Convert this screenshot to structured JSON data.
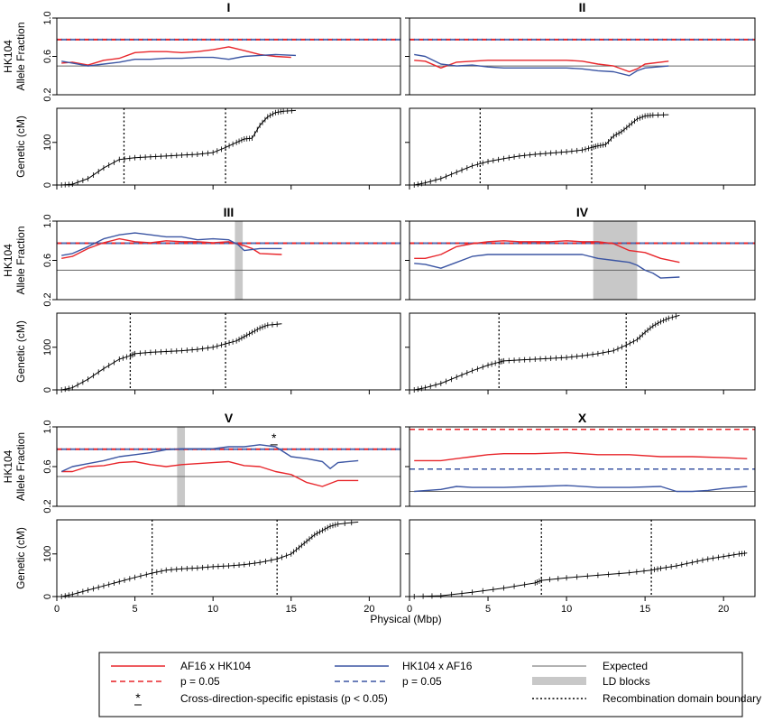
{
  "chart_data": {
    "type": "line",
    "layout": "3x2 panel grid, each cell has an allele-fraction track above a genetic map track",
    "xlabel": "Physical (Mbp)",
    "x_ticks": [
      0,
      5,
      10,
      15,
      20
    ],
    "xlim": [
      0,
      22
    ],
    "af_ylabel": [
      "HK104",
      "Allele Fraction"
    ],
    "af_ylim": [
      0.2,
      1.0
    ],
    "af_y_ticks": [
      0.2,
      0.6,
      1.0
    ],
    "gen_ylabel": "Genetic (cM)",
    "gen_ylim": [
      0,
      180
    ],
    "gen_y_ticks": [
      0,
      100
    ],
    "colors": {
      "af16_x_hk104": "#e8262b",
      "hk104_x_af16": "#3b55a3",
      "expected": "#666666",
      "ld": "#c8c8c8",
      "genetic": "#000000"
    },
    "legend": {
      "items": [
        {
          "label": "AF16 x HK104",
          "style": "red-solid"
        },
        {
          "label": "HK104 x AF16",
          "style": "blue-solid"
        },
        {
          "label": "Expected",
          "style": "gray-solid"
        },
        {
          "label": "p = 0.05",
          "style": "red-dashed"
        },
        {
          "label": "p = 0.05",
          "style": "blue-dashed"
        },
        {
          "label": "LD blocks",
          "style": "gray-band"
        },
        {
          "label": "Cross-direction-specific epistasis (p < 0.05)",
          "style": "asterisk"
        },
        {
          "label": "Recombination domain boundary",
          "style": "black-dotted"
        }
      ]
    },
    "panels": [
      {
        "chromosome": "I",
        "length": 15.3,
        "expected": 0.5,
        "p_red": 0.775,
        "p_blue": 0.775,
        "ld_blocks": [],
        "asterisk": null,
        "boundaries": [
          4.3,
          10.8
        ],
        "series": [
          {
            "x": [
              0.3,
              1,
              2,
              3,
              4,
              5,
              6,
              7,
              8,
              9,
              10,
              11,
              12,
              13,
              14,
              15
            ],
            "y": [
              0.53,
              0.54,
              0.51,
              0.56,
              0.58,
              0.64,
              0.65,
              0.65,
              0.64,
              0.65,
              0.67,
              0.7,
              0.66,
              0.62,
              0.6,
              0.59
            ]
          },
          {
            "x": [
              0.3,
              1,
              2,
              3,
              4,
              5,
              6,
              7,
              8,
              9,
              10,
              11,
              12,
              13,
              14,
              15.3
            ],
            "y": [
              0.55,
              0.53,
              0.5,
              0.52,
              0.54,
              0.57,
              0.57,
              0.58,
              0.58,
              0.59,
              0.59,
              0.57,
              0.6,
              0.61,
              0.62,
              0.61
            ]
          }
        ],
        "genetic": {
          "x": [
            0.3,
            1,
            2,
            3,
            4,
            5,
            6,
            7,
            8,
            9,
            10,
            10.8,
            11.5,
            12,
            12.5,
            13,
            13.5,
            14,
            14.5,
            15.3
          ],
          "y": [
            0,
            2,
            15,
            40,
            60,
            64,
            66,
            68,
            70,
            72,
            76,
            88,
            100,
            108,
            110,
            140,
            160,
            170,
            173,
            175
          ]
        }
      },
      {
        "chromosome": "II",
        "length": 16.5,
        "expected": 0.5,
        "p_red": 0.775,
        "p_blue": 0.775,
        "ld_blocks": [],
        "asterisk": null,
        "boundaries": [
          4.5,
          11.6
        ],
        "series": [
          {
            "x": [
              0.3,
              1,
              2,
              3,
              4,
              5,
              6,
              7,
              8,
              9,
              10,
              11,
              12,
              13,
              14,
              14.5,
              15,
              16.5
            ],
            "y": [
              0.56,
              0.55,
              0.48,
              0.54,
              0.55,
              0.56,
              0.56,
              0.56,
              0.56,
              0.56,
              0.56,
              0.55,
              0.52,
              0.5,
              0.44,
              0.47,
              0.52,
              0.55
            ]
          },
          {
            "x": [
              0.3,
              1,
              2,
              3,
              4,
              5,
              6,
              7,
              8,
              9,
              10,
              11,
              12,
              13,
              14,
              14.5,
              15,
              16.5
            ],
            "y": [
              0.62,
              0.6,
              0.52,
              0.5,
              0.51,
              0.49,
              0.48,
              0.48,
              0.48,
              0.48,
              0.48,
              0.47,
              0.45,
              0.44,
              0.4,
              0.45,
              0.48,
              0.5
            ]
          }
        ],
        "genetic": {
          "x": [
            0.3,
            1,
            2,
            3,
            4,
            5,
            6,
            7,
            8,
            9,
            10,
            11,
            11.6,
            12,
            12.5,
            13,
            13.5,
            14,
            14.5,
            15,
            15.5,
            16.5
          ],
          "y": [
            0,
            5,
            15,
            30,
            45,
            55,
            62,
            68,
            72,
            75,
            78,
            82,
            88,
            92,
            95,
            115,
            125,
            140,
            155,
            162,
            164,
            165
          ]
        }
      },
      {
        "chromosome": "III",
        "length": 14.4,
        "expected": 0.5,
        "p_red": 0.775,
        "p_blue": 0.775,
        "ld_blocks": [
          [
            11.4,
            11.9
          ]
        ],
        "asterisk": null,
        "boundaries": [
          4.7,
          10.8
        ],
        "series": [
          {
            "x": [
              0.3,
              1,
              2,
              3,
              4,
              5,
              6,
              7,
              8,
              9,
              10,
              11,
              12,
              12.5,
              13,
              14.4
            ],
            "y": [
              0.62,
              0.64,
              0.72,
              0.78,
              0.82,
              0.79,
              0.78,
              0.8,
              0.79,
              0.79,
              0.78,
              0.79,
              0.75,
              0.72,
              0.67,
              0.66
            ]
          },
          {
            "x": [
              0.3,
              1,
              2,
              3,
              4,
              5,
              6,
              7,
              8,
              9,
              10,
              11,
              11.6,
              12,
              13,
              14.4
            ],
            "y": [
              0.65,
              0.67,
              0.74,
              0.82,
              0.86,
              0.88,
              0.86,
              0.84,
              0.84,
              0.81,
              0.82,
              0.81,
              0.76,
              0.7,
              0.72,
              0.72
            ]
          }
        ],
        "genetic": {
          "x": [
            0.3,
            1,
            2,
            3,
            4,
            4.7,
            5,
            6,
            7,
            8,
            9,
            10,
            10.8,
            11.5,
            12,
            12.5,
            13,
            13.5,
            14.4
          ],
          "y": [
            0,
            5,
            25,
            50,
            72,
            80,
            85,
            88,
            90,
            92,
            95,
            100,
            108,
            115,
            125,
            135,
            145,
            152,
            155
          ]
        }
      },
      {
        "chromosome": "IV",
        "length": 17.2,
        "expected": 0.5,
        "p_red": 0.775,
        "p_blue": 0.775,
        "ld_blocks": [
          [
            11.7,
            14.5
          ]
        ],
        "asterisk": null,
        "boundaries": [
          5.7,
          13.8
        ],
        "series": [
          {
            "x": [
              0.3,
              1,
              2,
              3,
              4,
              5,
              6,
              7,
              8,
              9,
              10,
              11,
              12,
              13,
              14,
              15,
              16,
              17.2
            ],
            "y": [
              0.62,
              0.62,
              0.66,
              0.74,
              0.77,
              0.79,
              0.8,
              0.79,
              0.79,
              0.79,
              0.8,
              0.79,
              0.79,
              0.77,
              0.7,
              0.68,
              0.62,
              0.58
            ]
          },
          {
            "x": [
              0.3,
              1,
              2,
              3,
              4,
              5,
              6,
              7,
              8,
              9,
              10,
              11,
              12,
              13,
              14,
              14.5,
              15,
              15.5,
              16,
              17.2
            ],
            "y": [
              0.57,
              0.56,
              0.52,
              0.58,
              0.64,
              0.66,
              0.66,
              0.66,
              0.66,
              0.66,
              0.66,
              0.66,
              0.62,
              0.6,
              0.58,
              0.55,
              0.5,
              0.47,
              0.42,
              0.43
            ]
          }
        ],
        "genetic": {
          "x": [
            0.3,
            1,
            2,
            3,
            4,
            5,
            5.7,
            6,
            7,
            8,
            9,
            10,
            11,
            12,
            13,
            13.8,
            14.5,
            15,
            15.5,
            16,
            16.5,
            17.2
          ],
          "y": [
            0,
            5,
            15,
            30,
            45,
            58,
            65,
            68,
            70,
            72,
            74,
            76,
            80,
            85,
            92,
            105,
            118,
            135,
            150,
            160,
            168,
            175
          ]
        }
      },
      {
        "chromosome": "V",
        "length": 19.3,
        "expected": 0.5,
        "p_red": 0.775,
        "p_blue": 0.775,
        "ld_blocks": [
          [
            7.7,
            8.2
          ]
        ],
        "asterisk": {
          "x": 13.9,
          "y": 0.81
        },
        "boundaries": [
          6.1,
          14.1
        ],
        "series": [
          {
            "x": [
              0.3,
              1,
              2,
              3,
              4,
              5,
              6,
              7,
              8,
              9,
              10,
              11,
              12,
              13,
              14,
              15,
              16,
              17,
              18,
              19.3
            ],
            "y": [
              0.55,
              0.55,
              0.6,
              0.61,
              0.64,
              0.65,
              0.62,
              0.6,
              0.62,
              0.63,
              0.64,
              0.65,
              0.61,
              0.6,
              0.55,
              0.52,
              0.44,
              0.4,
              0.46,
              0.46
            ]
          },
          {
            "x": [
              0.3,
              1,
              2,
              3,
              4,
              5,
              6,
              7,
              8,
              9,
              10,
              11,
              12,
              13,
              14,
              15,
              16,
              17,
              17.5,
              18,
              19.3
            ],
            "y": [
              0.55,
              0.6,
              0.63,
              0.66,
              0.7,
              0.72,
              0.74,
              0.77,
              0.78,
              0.78,
              0.78,
              0.8,
              0.8,
              0.82,
              0.8,
              0.7,
              0.68,
              0.65,
              0.58,
              0.64,
              0.66
            ]
          }
        ],
        "genetic": {
          "x": [
            0.3,
            1,
            2,
            3,
            4,
            5,
            6.1,
            7,
            8,
            9,
            10,
            11,
            12,
            13,
            14.1,
            15,
            15.5,
            16,
            16.5,
            17,
            17.5,
            18,
            19.3
          ],
          "y": [
            0,
            5,
            15,
            25,
            35,
            45,
            55,
            62,
            65,
            67,
            70,
            72,
            75,
            80,
            88,
            100,
            115,
            130,
            145,
            155,
            165,
            170,
            175
          ]
        }
      },
      {
        "chromosome": "X",
        "length": 21.5,
        "expected": 0.35,
        "p_red": 0.975,
        "p_blue": 0.575,
        "ld_blocks": [],
        "asterisk": null,
        "boundaries": [
          8.4,
          15.4
        ],
        "series": [
          {
            "x": [
              0.3,
              2,
              4,
              5,
              6,
              8,
              10,
              12,
              14,
              16,
              18,
              20,
              21.5
            ],
            "y": [
              0.66,
              0.66,
              0.7,
              0.72,
              0.73,
              0.73,
              0.74,
              0.72,
              0.72,
              0.7,
              0.7,
              0.69,
              0.68
            ]
          },
          {
            "x": [
              0.3,
              2,
              3,
              4,
              6,
              8,
              10,
              12,
              14,
              16,
              17,
              18,
              19,
              20,
              21.5
            ],
            "y": [
              0.35,
              0.37,
              0.4,
              0.39,
              0.39,
              0.4,
              0.41,
              0.39,
              0.39,
              0.4,
              0.35,
              0.35,
              0.36,
              0.38,
              0.4
            ]
          }
        ],
        "genetic": {
          "x": [
            0.3,
            2,
            4,
            6,
            8,
            8.4,
            10,
            12,
            14,
            15.4,
            16,
            17,
            18,
            19,
            20,
            21,
            21.5
          ],
          "y": [
            0,
            2,
            10,
            20,
            32,
            38,
            44,
            50,
            56,
            62,
            66,
            72,
            80,
            88,
            94,
            100,
            102
          ]
        }
      }
    ]
  }
}
